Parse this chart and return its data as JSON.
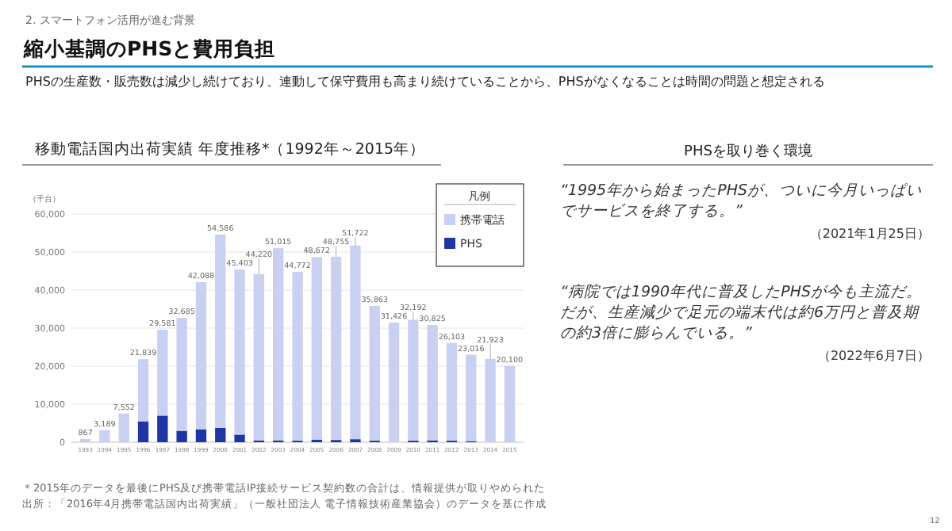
{
  "chart_data": {
    "type": "bar",
    "title": "移動電話国内出荷実績 年度推移*（1992年～2015年）",
    "ylabel": "（千台）",
    "legend_title": "凡例",
    "categories": [
      "1993",
      "1994",
      "1995",
      "1996",
      "1997",
      "1998",
      "1999",
      "2000",
      "2001",
      "2002",
      "2003",
      "2004",
      "2005",
      "2006",
      "2007",
      "2008",
      "2009",
      "2010",
      "2011",
      "2012",
      "2013",
      "2014",
      "2015"
    ],
    "stacked": true,
    "series": [
      {
        "name": "PHS",
        "color": "#1f35a5",
        "values": [
          0,
          0,
          0,
          5500,
          7000,
          3000,
          3400,
          3800,
          2000,
          500,
          500,
          400,
          700,
          600,
          800,
          400,
          0,
          400,
          500,
          400,
          300,
          0,
          0
        ]
      },
      {
        "name": "携帯電話",
        "color": "#c9d0f2",
        "values": [
          867,
          3189,
          7552,
          16339,
          22581,
          29685,
          38688,
          50786,
          43403,
          43720,
          50515,
          44372,
          47972,
          48155,
          50922,
          35463,
          31426,
          31792,
          30325,
          25703,
          22716,
          21923,
          20100
        ]
      }
    ],
    "totals": [
      "867",
      "3,189",
      "7,552",
      "21,839",
      "29,581",
      "32,685",
      "42,088",
      "54,586",
      "45,403",
      "44,220",
      "51,015",
      "44,772",
      "48,672",
      "48,755",
      "51,722",
      "35,863",
      "31,426",
      "32,192",
      "30,825",
      "26,103",
      "23,016",
      "21,923",
      "20,100"
    ],
    "ylim": [
      0,
      60000
    ],
    "yticks": [
      {
        "value": 0,
        "label": "0"
      },
      {
        "value": 10000,
        "label": "10,000"
      },
      {
        "value": 20000,
        "label": "20,000"
      },
      {
        "value": 30000,
        "label": "30,000"
      },
      {
        "value": 40000,
        "label": "40,000"
      },
      {
        "value": 50000,
        "label": "50,000"
      },
      {
        "value": 60000,
        "label": "60,000"
      }
    ],
    "grid": "y",
    "legend": "top right",
    "annotations": [
      "2. スマートフォン活用が進む背景",
      "縮小基調のPHSと費用負担",
      "PHSの生産数・販売数は減少し続けており、連動して保守費用も高まり続けていることから、PHSがなくなることは時間の問題と想定される",
      "PHSを取り巻く環境",
      "“1995年から始まったPHSが、ついに今月いっぱいでサービスを終了する。”",
      "（2021年1月25日）",
      "“病院では1990年代に普及したPHSが今も主流だ。だが、生産減少で足元の端末代は約6万円と普及期の約3倍に膨らんでいる。”",
      "（2022年6月7日）",
      "＊2015年のデータを最後にPHS及び携帯電話IP接続サービス契約数の合計は、情報提供が取りやめられた",
      "出所：「2016年4月携帯電話国内出荷実績」（一般社団法人 電子情報技術産業協会）のデータを基に作成",
      "12"
    ]
  }
}
